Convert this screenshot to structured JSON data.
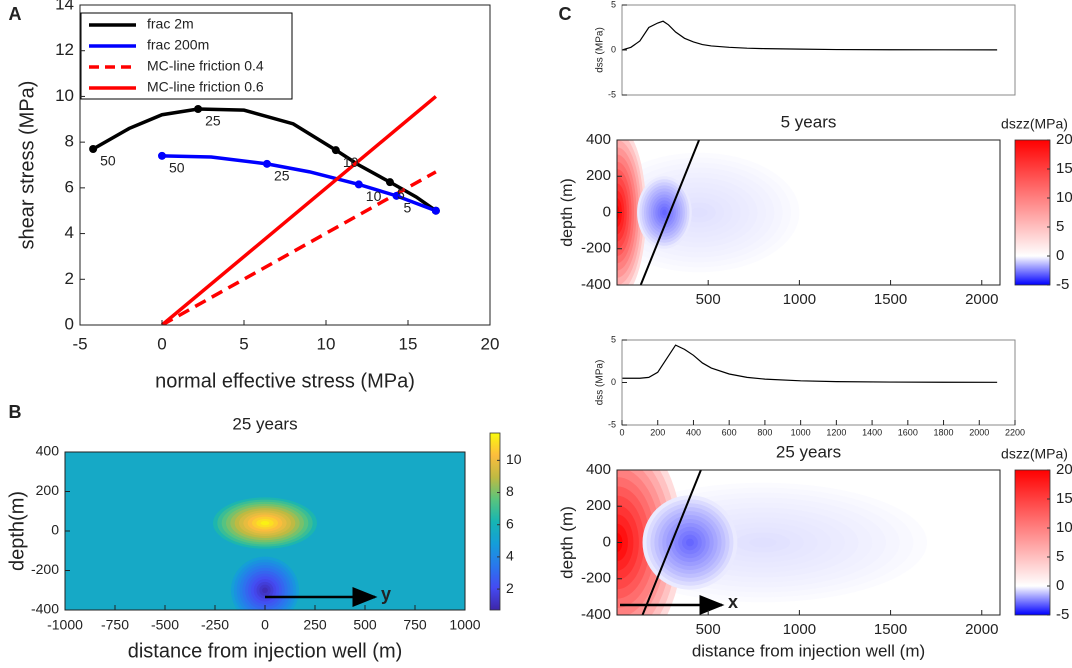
{
  "chart_data": [
    {
      "type": "line",
      "panel": "A",
      "xlabel": "normal effective stress (MPa)",
      "ylabel": "shear stress (MPa)",
      "xlim": [
        -5,
        20
      ],
      "xticks": [
        -5,
        0,
        5,
        10,
        15,
        20
      ],
      "ylim": [
        0,
        14
      ],
      "yticks": [
        0,
        2,
        4,
        6,
        8,
        10,
        12,
        14
      ],
      "legend": "upper left",
      "series": [
        {
          "name": "frac 2m",
          "color": "#000000",
          "linestyle": "solid",
          "x": [
            -4.2,
            -2,
            0,
            2.2,
            5,
            8,
            10.6,
            12,
            13.9,
            15.5,
            16.7
          ],
          "values": [
            7.7,
            8.6,
            9.2,
            9.45,
            9.4,
            8.8,
            7.65,
            7.0,
            6.25,
            5.6,
            5.0
          ],
          "points": [
            {
              "label": "50",
              "x": -4.2,
              "y": 7.7
            },
            {
              "label": "25",
              "x": 2.2,
              "y": 9.45
            },
            {
              "label": "10",
              "x": 10.6,
              "y": 7.65
            },
            {
              "label": "5",
              "x": 13.9,
              "y": 6.25
            }
          ]
        },
        {
          "name": "frac 200m",
          "color": "#0000ff",
          "linestyle": "solid",
          "x": [
            0,
            3,
            6.4,
            9,
            12,
            14.3,
            16.7
          ],
          "values": [
            7.4,
            7.35,
            7.05,
            6.7,
            6.15,
            5.65,
            5.0
          ],
          "points": [
            {
              "label": "50",
              "x": 0,
              "y": 7.4
            },
            {
              "label": "25",
              "x": 6.4,
              "y": 7.05
            },
            {
              "label": "10",
              "x": 12,
              "y": 6.15
            },
            {
              "label": "5",
              "x": 14.3,
              "y": 5.65
            }
          ]
        },
        {
          "name": "MC-line friction 0.4",
          "color": "#ff0000",
          "linestyle": "dashed",
          "x": [
            0,
            16.7
          ],
          "values": [
            0,
            6.7
          ]
        },
        {
          "name": "MC-line friction 0.6",
          "color": "#ff0000",
          "linestyle": "solid",
          "x": [
            0,
            16.7
          ],
          "values": [
            0,
            10
          ]
        }
      ]
    },
    {
      "type": "heatmap",
      "panel": "B",
      "title": "25 years",
      "xlabel": "distance from injection well (m)",
      "ylabel": "depth(m)",
      "xlim": [
        -1000,
        1000
      ],
      "xticks": [
        -1000,
        -750,
        -500,
        -250,
        0,
        250,
        500,
        750,
        1000
      ],
      "ylim": [
        -400,
        400
      ],
      "yticks": [
        -400,
        -200,
        0,
        200,
        400
      ],
      "colormap": "parula",
      "background": 5.5,
      "fields": [
        {
          "x": 0,
          "y": 40,
          "rx": 260,
          "ry": 130,
          "value": 11.5
        },
        {
          "x": 0,
          "y": -300,
          "rx": 170,
          "ry": 170,
          "value": 1
        }
      ],
      "arrow_label": "y",
      "colorbar": {
        "clim": [
          0.7,
          11.7
        ],
        "ticks": [
          2,
          4,
          6,
          8,
          10
        ]
      }
    },
    {
      "type": "line",
      "panel": "C",
      "ylabel": "dss (MPa)",
      "xlim": [
        0,
        2200
      ],
      "ylim": [
        -5,
        5
      ],
      "yticks": [
        -5,
        0,
        5
      ],
      "series": [
        {
          "color": "#000000",
          "linestyle": "solid",
          "x": [
            0,
            50,
            100,
            150,
            200,
            230,
            260,
            300,
            350,
            400,
            450,
            500,
            600,
            700,
            800,
            1000,
            1200,
            1500,
            1800,
            2100
          ],
          "values": [
            0,
            0.3,
            1,
            2.5,
            3,
            3.2,
            2.8,
            2,
            1.3,
            0.9,
            0.6,
            0.45,
            0.3,
            0.2,
            0.15,
            0.1,
            0.05,
            0.03,
            0.02,
            0.01
          ]
        }
      ]
    },
    {
      "type": "contour",
      "title": "5 years",
      "ylabel": "depth (m)",
      "xlim": [
        0,
        2100
      ],
      "xticks": [
        500,
        1000,
        1500,
        2000
      ],
      "ylim": [
        -400,
        400
      ],
      "yticks": [
        -400,
        -200,
        0,
        200,
        400
      ],
      "colormap": "bwr",
      "background": 0,
      "fields": [
        {
          "x": 450,
          "y": 0,
          "rx": 550,
          "ry": 330,
          "value": -0.6
        },
        {
          "x": 0,
          "y": 0,
          "rx": 160,
          "ry": 480,
          "value": 20
        },
        {
          "x": 260,
          "y": 0,
          "rx": 150,
          "ry": 200,
          "value": -3
        }
      ],
      "fault": {
        "x": [
          130,
          450
        ],
        "y": [
          -400,
          400
        ]
      },
      "colorbar": {
        "label": "dszz(MPa)",
        "clim": [
          -5,
          20
        ],
        "ticks": [
          -5,
          0,
          5,
          10,
          15,
          20
        ]
      }
    },
    {
      "type": "line",
      "ylabel": "dss (MPa)",
      "xlim": [
        0,
        2200
      ],
      "xticks": [
        0,
        200,
        400,
        600,
        800,
        1000,
        1200,
        1400,
        1600,
        1800,
        2000,
        2200
      ],
      "ylim": [
        -5,
        5
      ],
      "yticks": [
        -5,
        0,
        5
      ],
      "series": [
        {
          "color": "#000000",
          "linestyle": "solid",
          "x": [
            0,
            100,
            150,
            200,
            250,
            300,
            350,
            400,
            450,
            500,
            600,
            700,
            800,
            1000,
            1200,
            1500,
            1800,
            2100
          ],
          "values": [
            0.5,
            0.5,
            0.6,
            1.2,
            2.8,
            4.4,
            3.9,
            3.2,
            2.3,
            1.7,
            1.0,
            0.6,
            0.4,
            0.2,
            0.1,
            0.05,
            0.03,
            0.02
          ]
        }
      ]
    },
    {
      "type": "contour",
      "title": "25 years",
      "xlabel": "distance from injection well (m)",
      "ylabel": "depth (m)",
      "xlim": [
        0,
        2100
      ],
      "xticks": [
        500,
        1000,
        1500,
        2000
      ],
      "ylim": [
        -400,
        400
      ],
      "yticks": [
        -400,
        -200,
        0,
        200,
        400
      ],
      "colormap": "bwr",
      "background": 0,
      "fields": [
        {
          "x": 800,
          "y": 0,
          "rx": 900,
          "ry": 330,
          "value": -0.6
        },
        {
          "x": 0,
          "y": 0,
          "rx": 360,
          "ry": 620,
          "value": 20
        },
        {
          "x": 400,
          "y": 0,
          "rx": 260,
          "ry": 260,
          "value": -3
        }
      ],
      "fault": {
        "x": [
          140,
          460
        ],
        "y": [
          -400,
          400
        ]
      },
      "arrow_label": "x",
      "colorbar": {
        "label": "dszz(MPa)",
        "clim": [
          -5,
          20
        ],
        "ticks": [
          -5,
          0,
          5,
          10,
          15,
          20
        ]
      }
    }
  ]
}
